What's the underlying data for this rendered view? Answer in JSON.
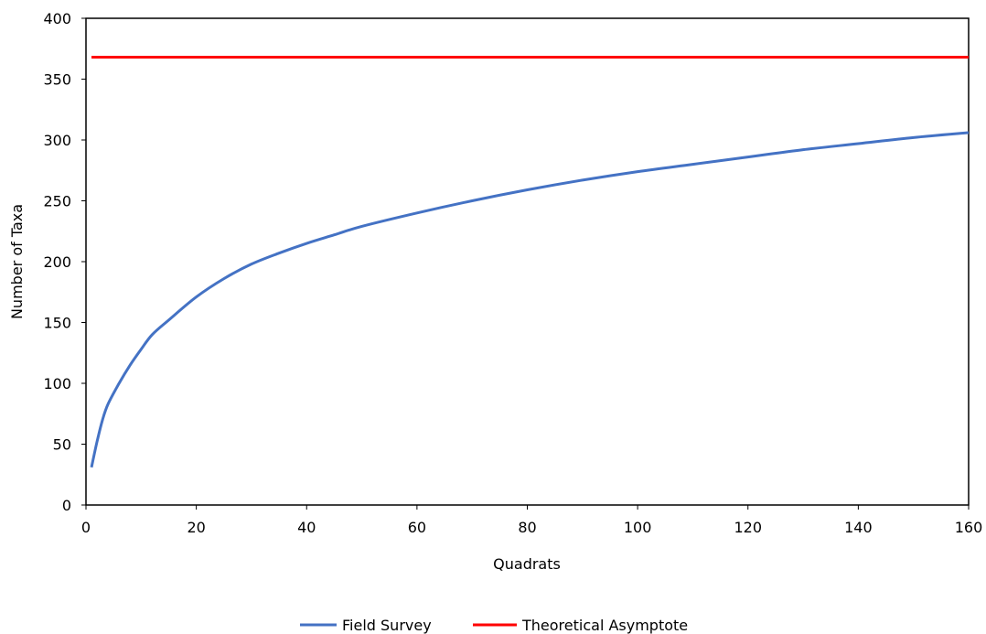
{
  "chart_data": {
    "type": "line",
    "title": "",
    "xlabel": "Quadrats",
    "ylabel": "Number of Taxa",
    "xlim": [
      0,
      160
    ],
    "ylim": [
      0,
      400
    ],
    "x_ticks": [
      0,
      20,
      40,
      60,
      80,
      100,
      120,
      140,
      160
    ],
    "y_ticks": [
      0,
      50,
      100,
      150,
      200,
      250,
      300,
      350,
      400
    ],
    "grid": false,
    "legend_position": "bottom",
    "series": [
      {
        "name": "Field Survey",
        "color": "#4472C4",
        "x": [
          1,
          2,
          3,
          4,
          6,
          8,
          10,
          12,
          15,
          20,
          25,
          30,
          35,
          40,
          45,
          50,
          60,
          70,
          80,
          90,
          100,
          110,
          120,
          130,
          140,
          150,
          160
        ],
        "y": [
          31,
          52,
          70,
          83,
          100,
          115,
          128,
          140,
          152,
          171,
          186,
          198,
          207,
          215,
          222,
          229,
          240,
          250,
          259,
          267,
          274,
          280,
          286,
          292,
          297,
          302,
          306
        ]
      },
      {
        "name": "Theoretical Asymptote",
        "color": "#FF0000",
        "x": [
          1,
          160
        ],
        "y": [
          368,
          368
        ]
      }
    ]
  }
}
